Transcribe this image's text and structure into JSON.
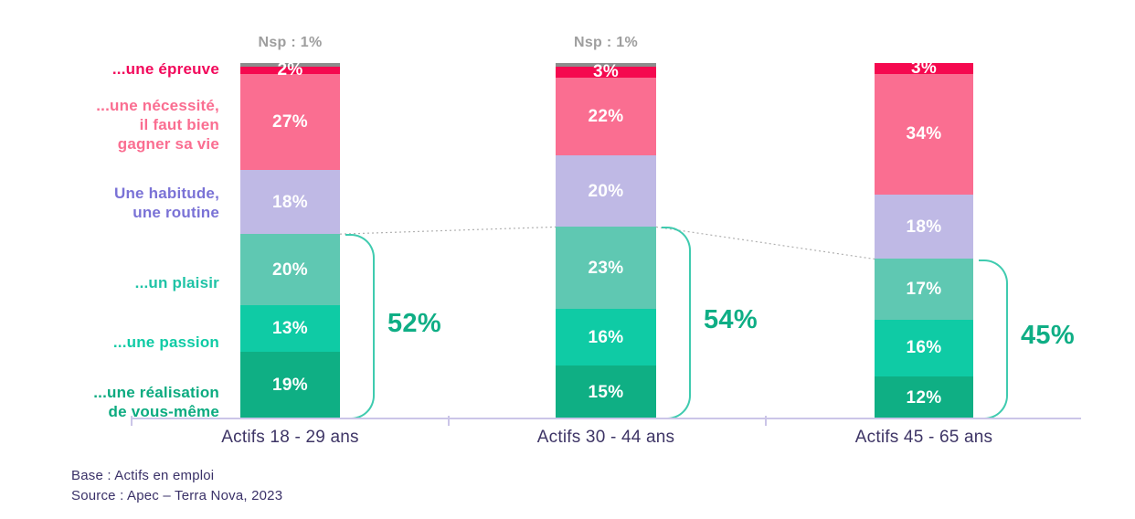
{
  "chart_data": {
    "type": "bar",
    "stacked": true,
    "orientation": "vertical",
    "unit": "%",
    "grid": false,
    "legend_position": "left-labels",
    "categories": [
      "Actifs 18 - 29 ans",
      "Actifs 30 - 44 ans",
      "Actifs 45 - 65 ans"
    ],
    "series": [
      {
        "id": "nsp",
        "name": "Nsp",
        "color": "#8C8C8C",
        "label_color": "#9E9E9E",
        "values": [
          1,
          1,
          0
        ],
        "show_row_label": false,
        "show_value_labels": false
      },
      {
        "id": "epreuve",
        "name": "...une épreuve",
        "lines": [
          "...une épreuve"
        ],
        "color": "#F5094F",
        "label_color": "#F2095B",
        "values": [
          2,
          3,
          3
        ],
        "show_row_label": true,
        "show_value_labels": true
      },
      {
        "id": "necessite",
        "name": "...une nécessité, il faut bien gagner sa vie",
        "lines": [
          "...une nécessité,",
          "il faut bien",
          "gagner sa vie"
        ],
        "color": "#FA6E91",
        "label_color": "#FA6E91",
        "values": [
          27,
          22,
          34
        ],
        "show_row_label": true,
        "show_value_labels": true
      },
      {
        "id": "habitude",
        "name": "Une habitude, une routine",
        "lines": [
          "Une habitude,",
          "une routine"
        ],
        "color": "#BFB9E5",
        "label_color": "#7A72D6",
        "values": [
          18,
          20,
          18
        ],
        "show_row_label": true,
        "show_value_labels": true
      },
      {
        "id": "plaisir",
        "name": "...un plaisir",
        "lines": [
          "...un plaisir"
        ],
        "color": "#5FC8B2",
        "label_color": "#1FC3A6",
        "values": [
          20,
          23,
          17
        ],
        "show_row_label": true,
        "show_value_labels": true
      },
      {
        "id": "passion",
        "name": "...une passion",
        "lines": [
          "...une passion"
        ],
        "color": "#0FCBA5",
        "label_color": "#0FCBA5",
        "values": [
          13,
          16,
          16
        ],
        "show_row_label": true,
        "show_value_labels": true
      },
      {
        "id": "realisation",
        "name": "...une réalisation de vous-même",
        "lines": [
          "...une réalisation",
          "de vous-même"
        ],
        "color": "#0FAF84",
        "label_color": "#0CAB80",
        "values": [
          19,
          15,
          12
        ],
        "show_row_label": true,
        "show_value_labels": true
      }
    ],
    "nsp_annotations": [
      "Nsp : 1%",
      "Nsp : 1%",
      ""
    ],
    "brackets": [
      {
        "label": "52%",
        "bar": 0,
        "span_series": [
          "plaisir",
          "passion",
          "realisation"
        ]
      },
      {
        "label": "54%",
        "bar": 1,
        "span_series": [
          "plaisir",
          "passion",
          "realisation"
        ]
      },
      {
        "label": "45%",
        "bar": 2,
        "span_series": [
          "plaisir",
          "passion",
          "realisation"
        ]
      }
    ],
    "connectors": {
      "boundary_above_series": "plaisir",
      "style": "dotted"
    }
  },
  "footer": {
    "base": "Base : Actifs en emploi",
    "source": "Source : Apec – Terra Nova, 2023"
  },
  "colors": {
    "bracket": "#3FCBAF",
    "bracket_label": "#0FAE85",
    "axis": "#CBC5E8",
    "axis_label": "#3E3566",
    "note": "#3A3168",
    "connector": "#B0B0B0",
    "value_text": "#FFFFFF"
  }
}
